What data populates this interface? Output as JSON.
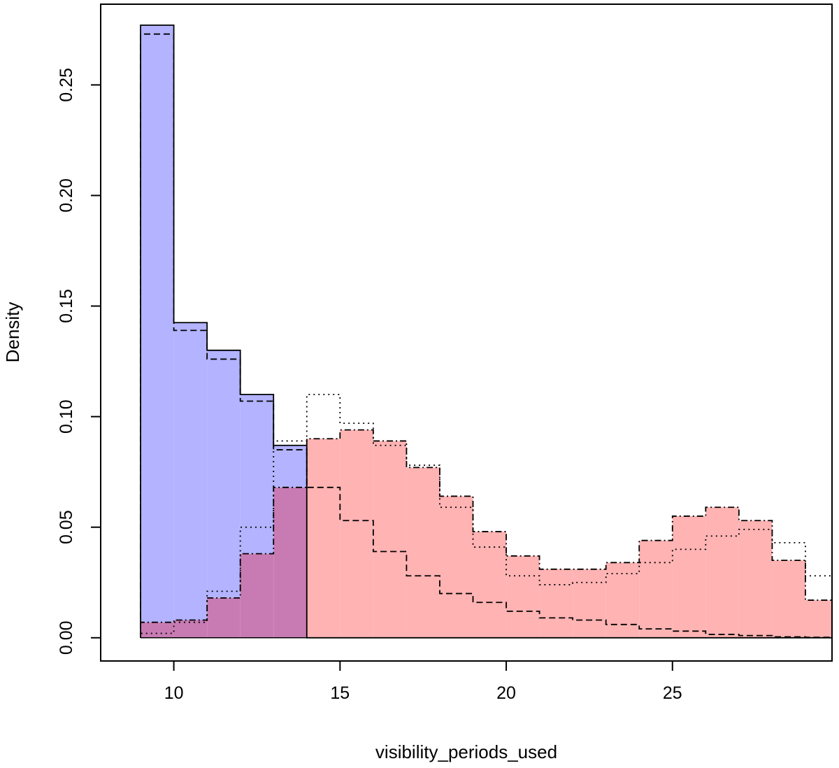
{
  "chart_data": {
    "type": "bar",
    "subtype": "overlaid-histogram",
    "title": "",
    "xlabel": "visibility_periods_used",
    "ylabel": "Density",
    "xlim": [
      7.8,
      29.8
    ],
    "ylim": [
      -0.0105,
      0.2865
    ],
    "bin_edges": [
      9,
      10,
      11,
      12,
      13,
      14,
      15,
      16,
      17,
      18,
      19,
      20,
      21,
      22,
      23,
      24,
      25,
      26,
      27,
      28,
      29,
      30
    ],
    "x_ticks": [
      10,
      15,
      20,
      25
    ],
    "x_tick_labels": [
      "10",
      "15",
      "20",
      "25"
    ],
    "y_ticks": [
      0.0,
      0.05,
      0.1,
      0.15,
      0.2,
      0.25
    ],
    "y_tick_labels": [
      "0.00",
      "0.05",
      "0.10",
      "0.15",
      "0.20",
      "0.25"
    ],
    "grid": false,
    "colors": {
      "blue_fill": "#b3b3ff",
      "red_fill": "#ffb3b3",
      "overlap_fill": "#c87bb3",
      "outline": "#000000"
    },
    "series": [
      {
        "name": "blue solid",
        "fill": "#b3b3ff",
        "line": "solid",
        "values": [
          0.277,
          0.1425,
          0.13,
          0.11,
          0.087,
          0.0,
          0.0,
          0.0,
          0.0,
          0.0,
          0.0,
          0.0,
          0.0,
          0.0,
          0.0,
          0.0,
          0.0,
          0.0,
          0.0,
          0.0,
          0.0
        ]
      },
      {
        "name": "blue dashed",
        "fill": "none",
        "line": "dashed",
        "values": [
          0.273,
          0.139,
          0.126,
          0.107,
          0.085,
          0.068,
          0.053,
          0.039,
          0.028,
          0.02,
          0.016,
          0.012,
          0.009,
          0.008,
          0.006,
          0.004,
          0.003,
          0.0015,
          0.001,
          0.0004,
          0.0002
        ]
      },
      {
        "name": "red dash-dot",
        "fill": "#ffb3b3",
        "line": "dashdot",
        "values": [
          0.007,
          0.008,
          0.018,
          0.038,
          0.068,
          0.09,
          0.094,
          0.089,
          0.077,
          0.064,
          0.048,
          0.037,
          0.031,
          0.031,
          0.034,
          0.044,
          0.055,
          0.059,
          0.053,
          0.035,
          0.017
        ]
      },
      {
        "name": "red dotted",
        "fill": "none",
        "line": "dotted",
        "values": [
          0.002,
          0.007,
          0.021,
          0.05,
          0.089,
          0.11,
          0.097,
          0.087,
          0.078,
          0.059,
          0.041,
          0.028,
          0.024,
          0.025,
          0.029,
          0.034,
          0.04,
          0.046,
          0.049,
          0.043,
          0.028
        ]
      }
    ]
  }
}
